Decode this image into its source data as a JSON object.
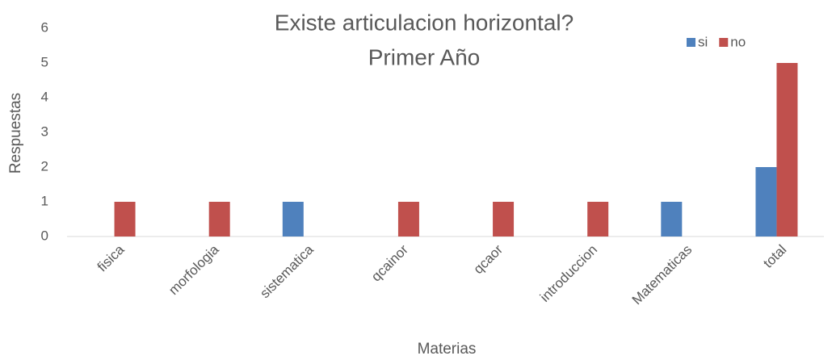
{
  "chart_data": {
    "type": "bar",
    "title": [
      "Existe articulacion horizontal?",
      "Primer Año"
    ],
    "x_label": "Materias",
    "y_label": "Respuestas",
    "categories": [
      "fisica",
      "morfologia",
      "sistematica",
      "qcainor",
      "qcaor",
      "introduccion",
      "Matematicas",
      "total"
    ],
    "series": [
      {
        "name": "si",
        "color": "#4f81bd",
        "values": [
          0,
          0,
          1,
          0,
          0,
          0,
          1,
          2
        ]
      },
      {
        "name": "no",
        "color": "#c0504d",
        "values": [
          1,
          1,
          0,
          1,
          1,
          1,
          0,
          5
        ]
      }
    ],
    "ylim": [
      0,
      6
    ],
    "yticks": [
      0,
      1,
      2,
      3,
      4,
      5,
      6
    ],
    "grid": false,
    "legend": "top-right"
  }
}
